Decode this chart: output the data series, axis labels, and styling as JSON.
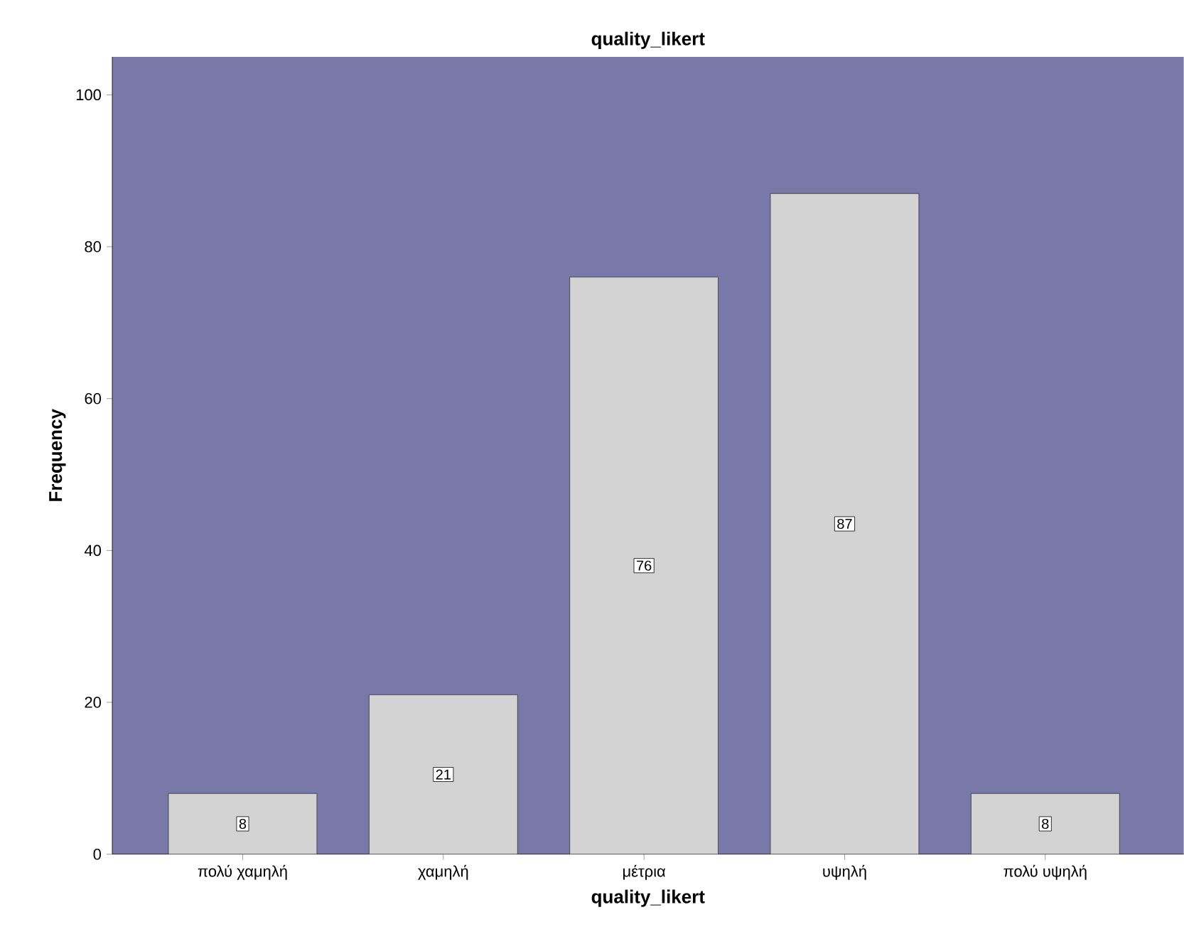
{
  "chart_data": {
    "type": "bar",
    "title": "quality_likert",
    "xlabel": "quality_likert",
    "ylabel": "Frequency",
    "categories": [
      "πολύ χαμηλή",
      "χαμηλή",
      "μέτρια",
      "υψηλή",
      "πολύ υψηλή"
    ],
    "values": [
      8,
      21,
      76,
      87,
      8
    ],
    "color": "#d3d3d3",
    "ylim": [
      0,
      105
    ],
    "yticks": [
      0,
      20,
      40,
      60,
      80,
      100
    ],
    "data_labels": true
  }
}
